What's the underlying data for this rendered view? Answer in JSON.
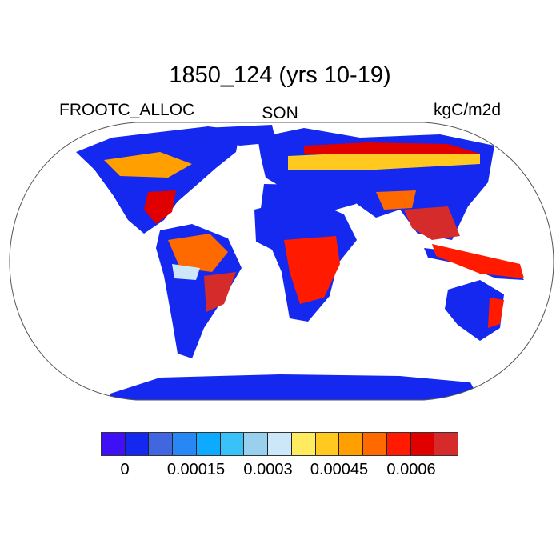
{
  "title": "1850_124 (yrs 10-19)",
  "left_string": "FROOTC_ALLOC",
  "center_string": "SON",
  "right_string": "kgC/m2d",
  "colorbar": {
    "colors": [
      "#3F10F5",
      "#1428F0",
      "#4067E0",
      "#2787F5",
      "#0DAAFF",
      "#38C2F8",
      "#98D0EE",
      "#CCE8F8",
      "#FFEB60",
      "#FFC91F",
      "#FFA000",
      "#FF6A00",
      "#FF1A00",
      "#E00000",
      "#D52B2B"
    ],
    "labels": [
      "0",
      "0.00015",
      "0.0003",
      "0.00045",
      "0.0006"
    ]
  },
  "map": {
    "projection": "Robinson",
    "land_base_color": "#1428F0"
  }
}
